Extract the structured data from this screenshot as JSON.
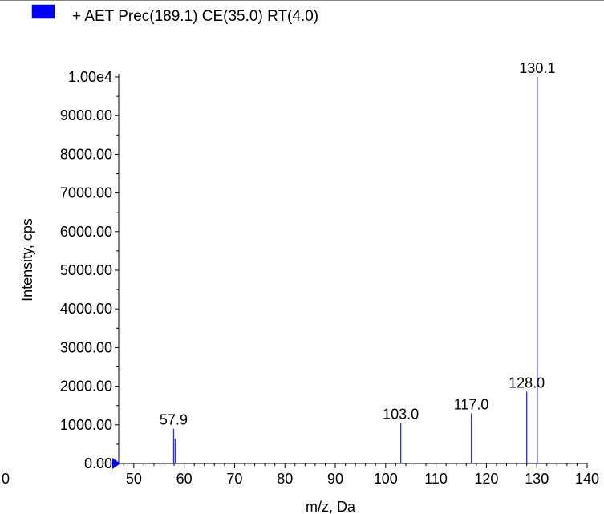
{
  "legend": {
    "label": "+ AET Prec(189.1) CE(35.0) RT(4.0)",
    "swatch_color": "#0000ff"
  },
  "colors": {
    "series": "#3333cc",
    "axis": "#000000",
    "marker": "#0000ff"
  },
  "chart_data": {
    "type": "bar",
    "xlabel": "m/z, Da",
    "ylabel": "Intensity, cps",
    "xlim": [
      47,
      140
    ],
    "ylim": [
      0,
      10000
    ],
    "x_ticks": [
      50,
      60,
      70,
      80,
      90,
      100,
      110,
      120,
      130,
      140
    ],
    "x_tick_labels": [
      "50",
      "60",
      "70",
      "80",
      "90",
      "100",
      "110",
      "120",
      "130",
      "140"
    ],
    "y_ticks": [
      0,
      1000,
      2000,
      3000,
      4000,
      5000,
      6000,
      7000,
      8000,
      9000,
      10000
    ],
    "y_tick_labels": [
      "0.00",
      "1000.00",
      "2000.00",
      "3000.00",
      "4000.00",
      "5000.00",
      "6000.00",
      "7000.00",
      "8000.00",
      "9000.00",
      "1.00e4"
    ],
    "clipped_left_tick_label": "0",
    "peaks": [
      {
        "mz": 57.9,
        "intensity": 900,
        "label": "57.9"
      },
      {
        "mz": 58.2,
        "intensity": 640,
        "label": ""
      },
      {
        "mz": 103.0,
        "intensity": 1050,
        "label": "103.0"
      },
      {
        "mz": 117.0,
        "intensity": 1300,
        "label": "117.0"
      },
      {
        "mz": 128.0,
        "intensity": 1860,
        "label": "128.0"
      },
      {
        "mz": 130.1,
        "intensity": 10000,
        "label": "130.1"
      }
    ],
    "grid": false,
    "legend_position": "top-left"
  }
}
